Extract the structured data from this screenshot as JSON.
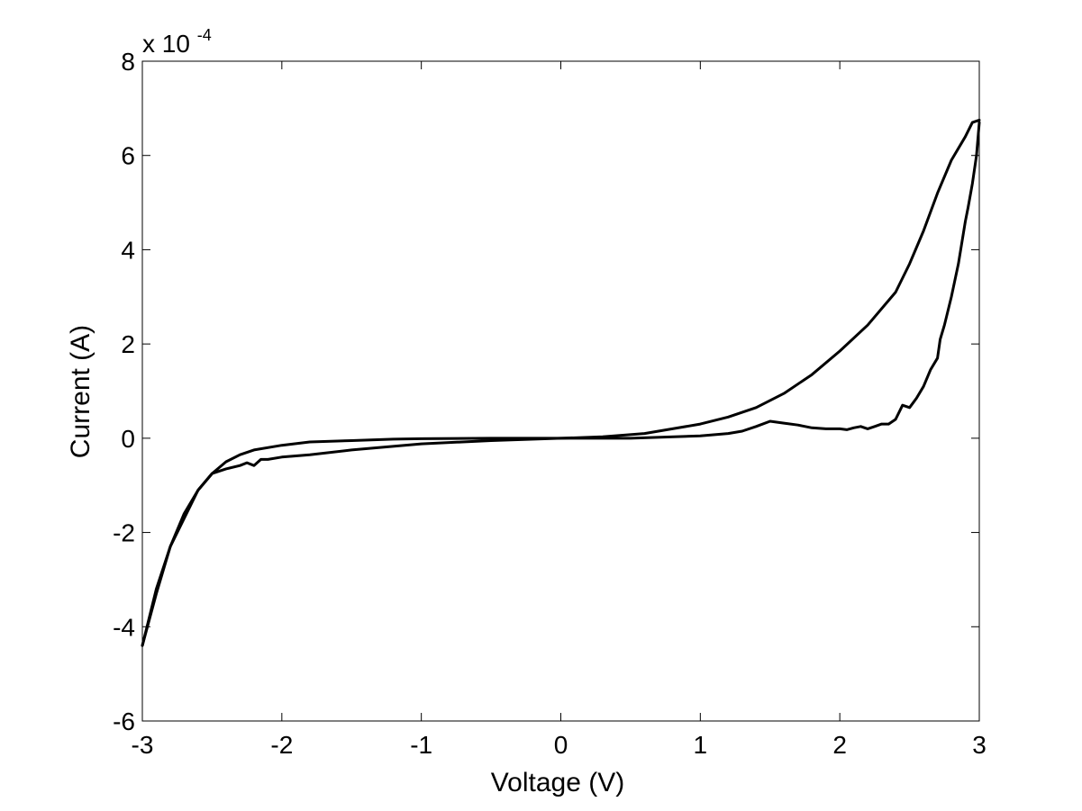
{
  "chart_data": {
    "type": "line",
    "title": "",
    "xlabel": "Voltage (V)",
    "ylabel": "Current (A)",
    "y_multiplier": {
      "base": "x 10",
      "exponent": "-4"
    },
    "xlim": [
      -3,
      3
    ],
    "ylim": [
      -6,
      8
    ],
    "x_ticks": [
      "-3",
      "-2",
      "-1",
      "0",
      "1",
      "2",
      "3"
    ],
    "y_ticks": [
      "-6",
      "-4",
      "-2",
      "0",
      "2",
      "4",
      "6",
      "8"
    ],
    "grid": false,
    "line_color": "#000000",
    "series": [
      {
        "x": [
          -3.0,
          -2.9,
          -2.8,
          -2.7,
          -2.6,
          -2.5,
          -2.4,
          -2.3,
          -2.2,
          -2.0,
          -1.8,
          -1.5,
          -1.2,
          -1.0,
          -0.5,
          0.0,
          0.3,
          0.6,
          0.8,
          1.0,
          1.2,
          1.4,
          1.6,
          1.8,
          2.0,
          2.2,
          2.4,
          2.5,
          2.6,
          2.7,
          2.8,
          2.9,
          2.95,
          3.0
        ],
        "y": [
          -4.4,
          -3.2,
          -2.3,
          -1.6,
          -1.1,
          -0.75,
          -0.5,
          -0.35,
          -0.25,
          -0.15,
          -0.08,
          -0.05,
          -0.02,
          -0.01,
          0.0,
          0.0,
          0.03,
          0.1,
          0.2,
          0.3,
          0.45,
          0.65,
          0.95,
          1.35,
          1.85,
          2.4,
          3.1,
          3.7,
          4.4,
          5.2,
          5.9,
          6.4,
          6.7,
          6.75
        ]
      },
      {
        "x": [
          3.0,
          2.98,
          2.95,
          2.92,
          2.9,
          2.85,
          2.8,
          2.75,
          2.72,
          2.7,
          2.65,
          2.6,
          2.55,
          2.5,
          2.45,
          2.4,
          2.35,
          2.3,
          2.25,
          2.2,
          2.15,
          2.1,
          2.05,
          2.0,
          1.9,
          1.8,
          1.7,
          1.6,
          1.5,
          1.4,
          1.3,
          1.2,
          1.0,
          0.5,
          0.0,
          -0.5,
          -1.0,
          -1.5,
          -1.8,
          -2.0,
          -2.1,
          -2.15,
          -2.2,
          -2.25,
          -2.3,
          -2.4,
          -2.5,
          -2.6,
          -2.7,
          -2.8,
          -2.9,
          -3.0
        ],
        "y": [
          6.7,
          6.0,
          5.4,
          4.9,
          4.6,
          3.7,
          3.0,
          2.4,
          2.1,
          1.7,
          1.45,
          1.1,
          0.85,
          0.65,
          0.7,
          0.4,
          0.3,
          0.3,
          0.25,
          0.2,
          0.25,
          0.22,
          0.18,
          0.2,
          0.2,
          0.22,
          0.28,
          0.32,
          0.36,
          0.25,
          0.15,
          0.1,
          0.05,
          0.0,
          0.0,
          -0.05,
          -0.12,
          -0.25,
          -0.35,
          -0.4,
          -0.45,
          -0.45,
          -0.58,
          -0.52,
          -0.58,
          -0.65,
          -0.75,
          -1.1,
          -1.7,
          -2.3,
          -3.3,
          -4.4
        ]
      }
    ]
  }
}
